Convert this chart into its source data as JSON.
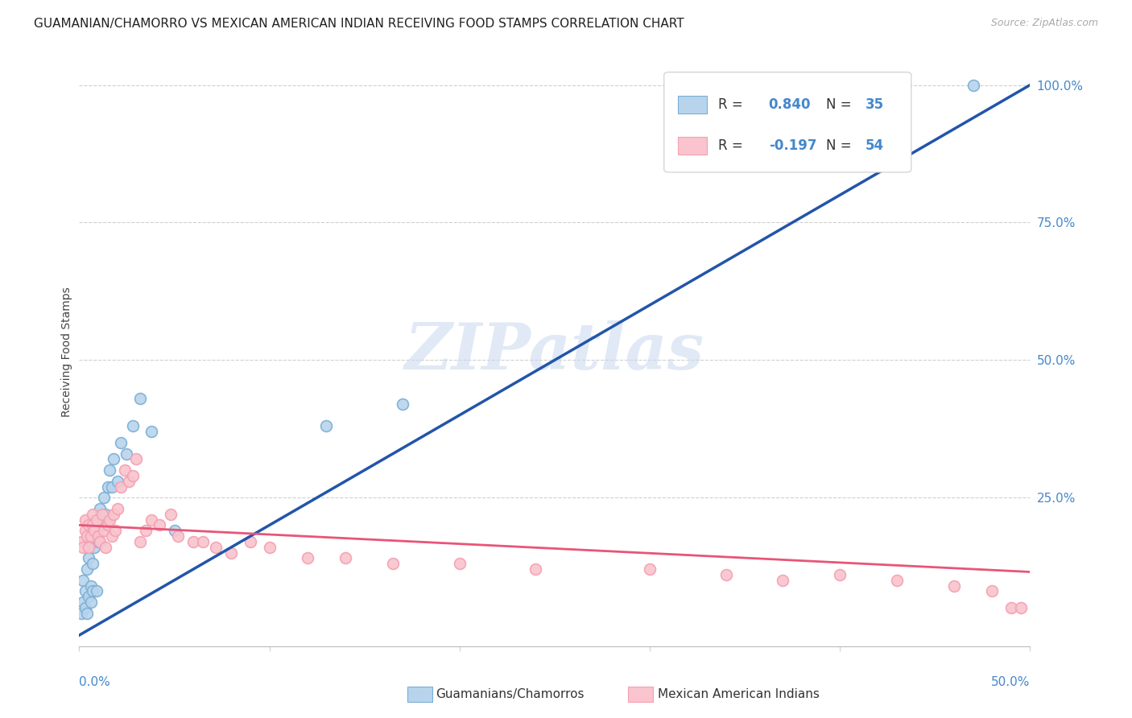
{
  "title": "GUAMANIAN/CHAMORRO VS MEXICAN AMERICAN INDIAN RECEIVING FOOD STAMPS CORRELATION CHART",
  "source": "Source: ZipAtlas.com",
  "ylabel": "Receiving Food Stamps",
  "xlim": [
    0.0,
    0.5
  ],
  "ylim": [
    -0.02,
    1.05
  ],
  "yticks": [
    0.25,
    0.5,
    0.75,
    1.0
  ],
  "ytick_labels": [
    "25.0%",
    "50.0%",
    "75.0%",
    "100.0%"
  ],
  "xtick_positions": [
    0.0,
    0.1,
    0.2,
    0.3,
    0.4,
    0.5
  ],
  "background_color": "#ffffff",
  "watermark": "ZIPatlas",
  "blue_color": "#7bafd4",
  "pink_color": "#f4a0b0",
  "blue_fill": "#b8d4ed",
  "pink_fill": "#f9c4ce",
  "line_blue": "#2255aa",
  "line_pink": "#e85577",
  "blue_scatter_x": [
    0.001,
    0.002,
    0.002,
    0.003,
    0.003,
    0.004,
    0.004,
    0.005,
    0.005,
    0.006,
    0.006,
    0.007,
    0.007,
    0.008,
    0.009,
    0.01,
    0.01,
    0.011,
    0.012,
    0.013,
    0.014,
    0.015,
    0.016,
    0.017,
    0.018,
    0.02,
    0.022,
    0.025,
    0.028,
    0.032,
    0.038,
    0.05,
    0.13,
    0.17,
    0.47
  ],
  "blue_scatter_y": [
    0.04,
    0.06,
    0.1,
    0.05,
    0.08,
    0.04,
    0.12,
    0.07,
    0.14,
    0.06,
    0.09,
    0.08,
    0.13,
    0.16,
    0.08,
    0.17,
    0.21,
    0.23,
    0.2,
    0.25,
    0.22,
    0.27,
    0.3,
    0.27,
    0.32,
    0.28,
    0.35,
    0.33,
    0.38,
    0.43,
    0.37,
    0.19,
    0.38,
    0.42,
    1.0
  ],
  "pink_scatter_x": [
    0.001,
    0.002,
    0.003,
    0.003,
    0.004,
    0.005,
    0.005,
    0.006,
    0.007,
    0.007,
    0.008,
    0.009,
    0.01,
    0.011,
    0.012,
    0.013,
    0.014,
    0.015,
    0.016,
    0.017,
    0.018,
    0.019,
    0.02,
    0.022,
    0.024,
    0.026,
    0.028,
    0.03,
    0.032,
    0.035,
    0.038,
    0.042,
    0.048,
    0.052,
    0.06,
    0.065,
    0.072,
    0.08,
    0.09,
    0.1,
    0.12,
    0.14,
    0.165,
    0.2,
    0.24,
    0.3,
    0.34,
    0.37,
    0.4,
    0.43,
    0.46,
    0.48,
    0.49,
    0.495
  ],
  "pink_scatter_y": [
    0.17,
    0.16,
    0.19,
    0.21,
    0.18,
    0.16,
    0.2,
    0.18,
    0.2,
    0.22,
    0.19,
    0.21,
    0.18,
    0.17,
    0.22,
    0.19,
    0.16,
    0.2,
    0.21,
    0.18,
    0.22,
    0.19,
    0.23,
    0.27,
    0.3,
    0.28,
    0.29,
    0.32,
    0.17,
    0.19,
    0.21,
    0.2,
    0.22,
    0.18,
    0.17,
    0.17,
    0.16,
    0.15,
    0.17,
    0.16,
    0.14,
    0.14,
    0.13,
    0.13,
    0.12,
    0.12,
    0.11,
    0.1,
    0.11,
    0.1,
    0.09,
    0.08,
    0.05,
    0.05
  ],
  "blue_line_x": [
    0.0,
    0.5
  ],
  "blue_line_y": [
    0.0,
    1.0
  ],
  "pink_line_x": [
    0.0,
    0.5
  ],
  "pink_line_y": [
    0.2,
    0.115
  ],
  "legend_labels": [
    "Guamanians/Chamorros",
    "Mexican American Indians"
  ],
  "grid_color": "#d0d0d0",
  "title_fontsize": 11,
  "tick_color": "#4488cc",
  "source_color": "#aaaaaa"
}
